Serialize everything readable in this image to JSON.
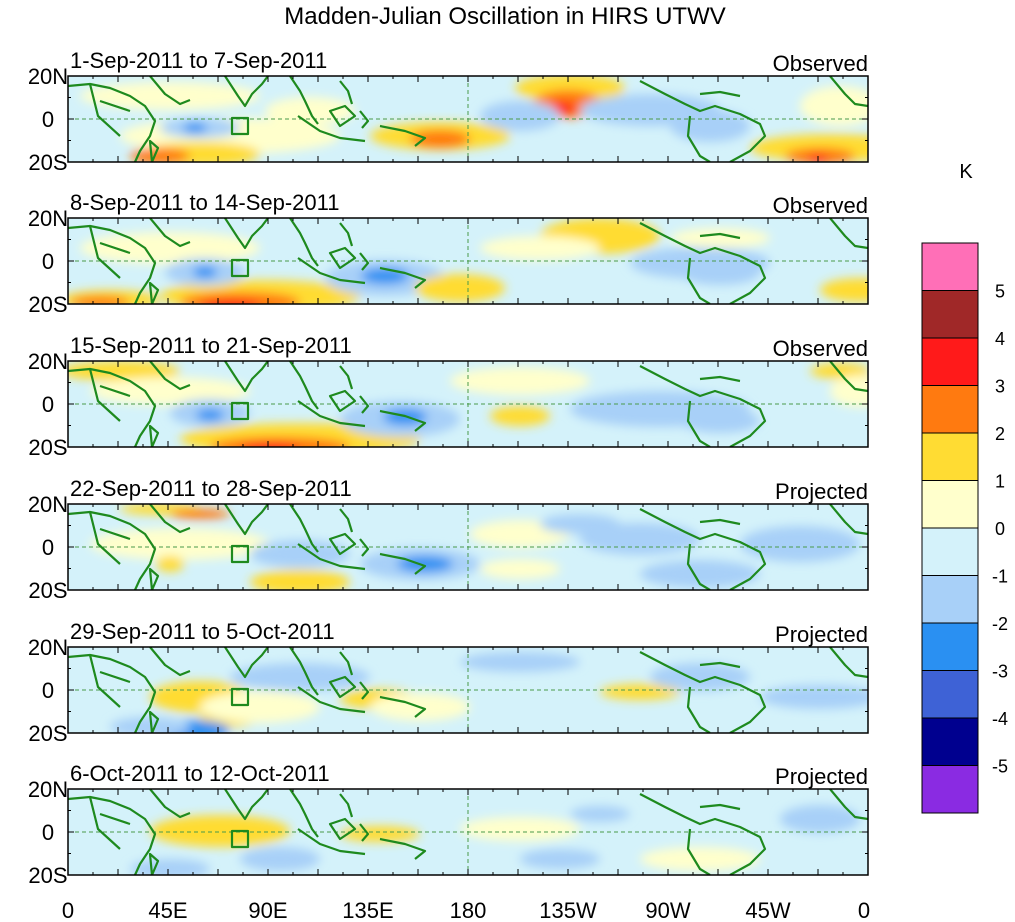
{
  "title": "Madden-Julian Oscillation in HIRS UTWV",
  "units_label": "K",
  "lat_labels": [
    "20N",
    "0",
    "20S"
  ],
  "lon_labels": [
    "0",
    "45E",
    "90E",
    "135E",
    "180",
    "135W",
    "90W",
    "45W",
    "0"
  ],
  "panels": [
    {
      "date_range": "1-Sep-2011 to 7-Sep-2011",
      "kind": "Observed"
    },
    {
      "date_range": "8-Sep-2011 to 14-Sep-2011",
      "kind": "Observed"
    },
    {
      "date_range": "15-Sep-2011 to 21-Sep-2011",
      "kind": "Observed"
    },
    {
      "date_range": "22-Sep-2011 to 28-Sep-2011",
      "kind": "Projected"
    },
    {
      "date_range": "29-Sep-2011 to 5-Oct-2011",
      "kind": "Projected"
    },
    {
      "date_range": "6-Oct-2011 to 12-Oct-2011",
      "kind": "Projected"
    }
  ],
  "colorbar": {
    "colors": [
      "#ff6fb7",
      "#a02828",
      "#ff1a1a",
      "#ff7a10",
      "#ffdc33",
      "#ffffcc",
      "#d4f2fa",
      "#a8d0f8",
      "#2a90f2",
      "#3e62d6",
      "#00008f",
      "#8a2be2"
    ],
    "labels": [
      "5",
      "4",
      "3",
      "2",
      "1",
      "0",
      "-1",
      "-2",
      "-3",
      "-4",
      "-5"
    ]
  },
  "colors": {
    "land": "#1e8a1e",
    "ocean_base": "#d4f2fa",
    "dashed_line": "#4a9a4a"
  }
}
